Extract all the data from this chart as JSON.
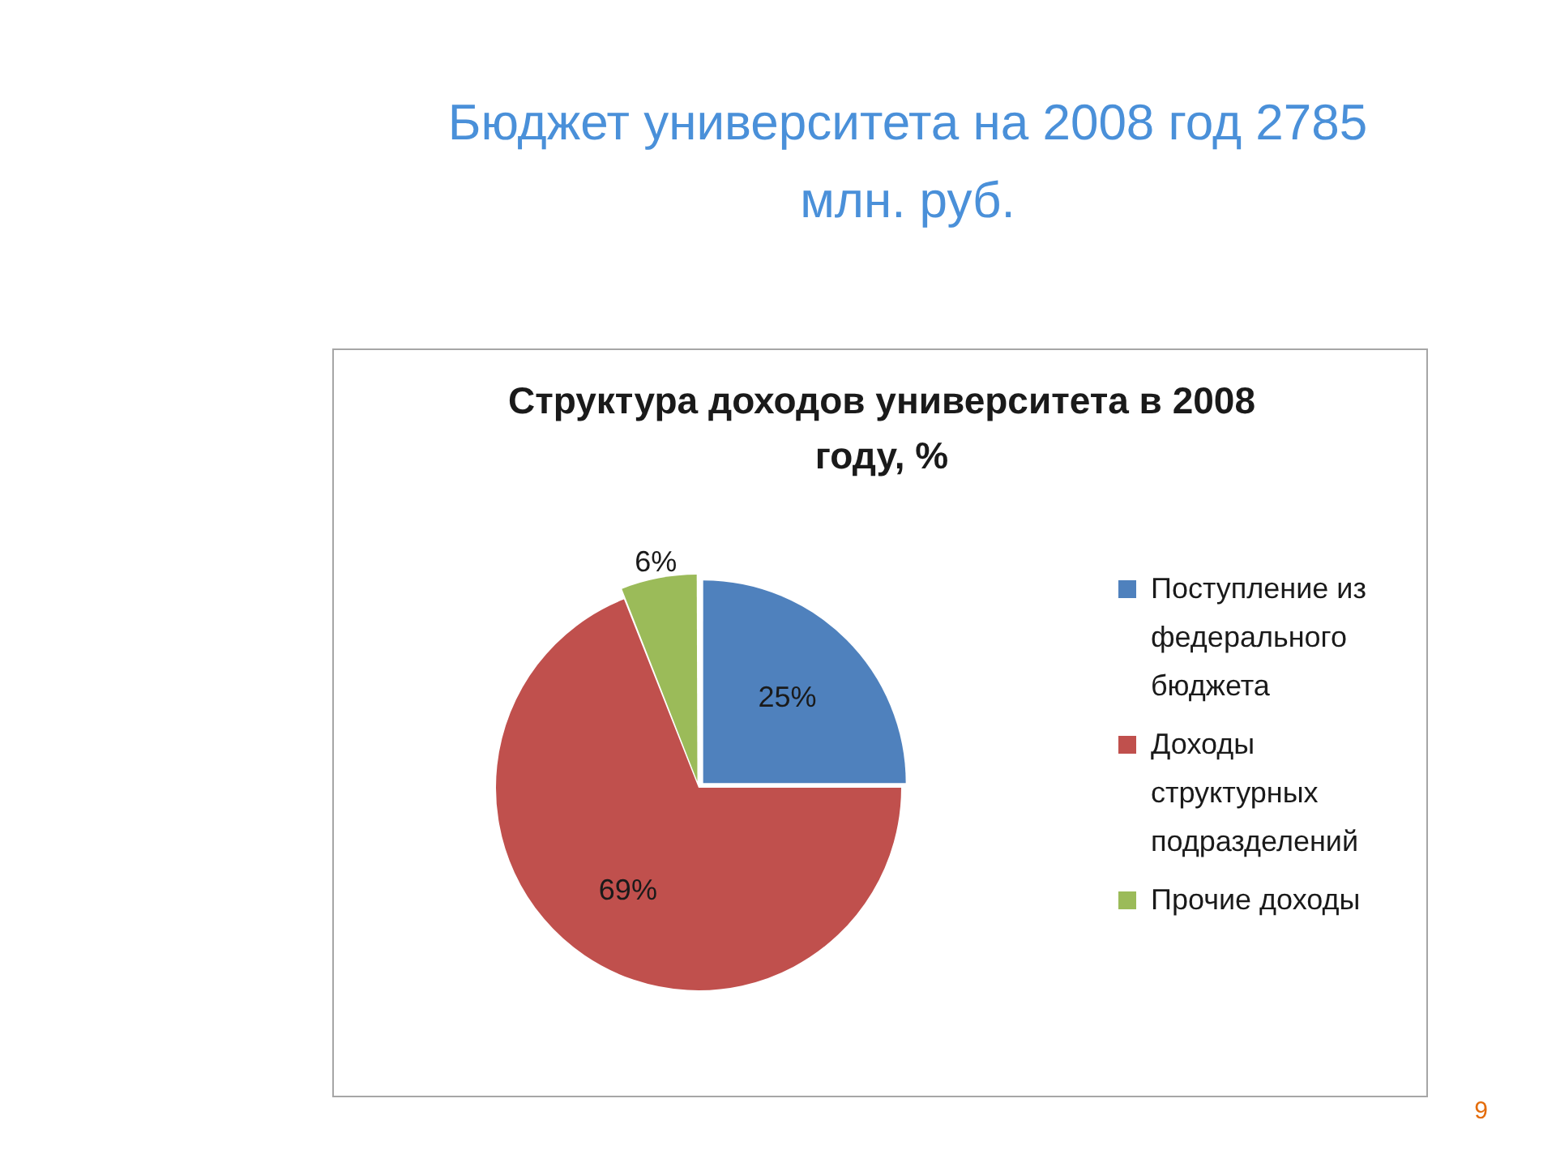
{
  "chart_data": {
    "type": "pie",
    "title": "Бюджет университета на 2008 год 2785 млн. руб.",
    "subtitle": "Структура доходов университета в 2008 году, %",
    "categories": [
      "Поступление из федерального бюджета",
      "Доходы структурных подразделений",
      "Прочие доходы"
    ],
    "values": [
      25,
      69,
      6
    ],
    "colors": [
      "#4f81bd",
      "#c0504d",
      "#9bbb59"
    ],
    "value_labels": [
      "25%",
      "69%",
      "6%"
    ],
    "legend": "right",
    "annotations": [
      "9"
    ]
  }
}
